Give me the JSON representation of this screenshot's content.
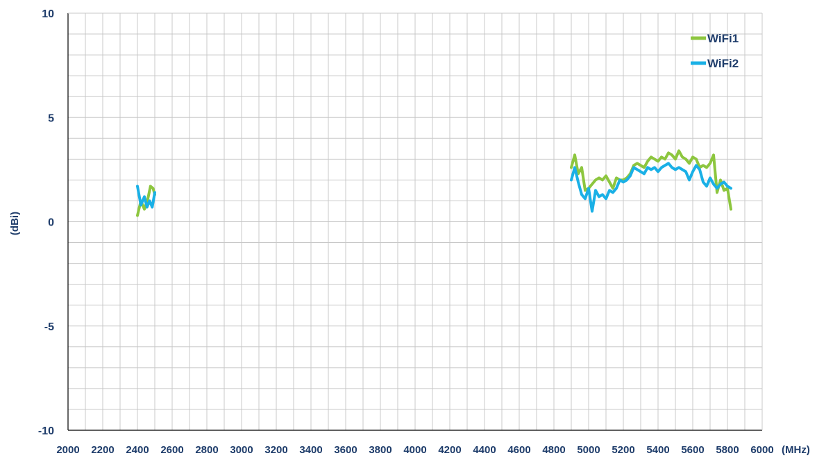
{
  "chart_data": {
    "type": "line",
    "xlabel": "(MHz)",
    "ylabel": "(dBi)",
    "xlim": [
      2000,
      6000
    ],
    "ylim": [
      -10,
      10
    ],
    "x_ticks": [
      2000,
      2200,
      2400,
      2600,
      2800,
      3000,
      3200,
      3400,
      3600,
      3800,
      4000,
      4200,
      4400,
      4600,
      4800,
      5000,
      5200,
      5400,
      5600,
      5800,
      6000
    ],
    "x_minor_step": 100,
    "y_ticks": [
      -10,
      -5,
      0,
      5,
      10
    ],
    "y_minor_step": 1,
    "grid": true,
    "legend_position": "top-right",
    "series": [
      {
        "name": "WiFi1",
        "color": "#8dc63f",
        "segments": [
          [
            [
              2400,
              0.3
            ],
            [
              2420,
              1.0
            ],
            [
              2440,
              0.6
            ],
            [
              2460,
              1.1
            ],
            [
              2475,
              1.7
            ],
            [
              2490,
              1.6
            ],
            [
              2500,
              1.3
            ]
          ],
          [
            [
              4900,
              2.6
            ],
            [
              4920,
              3.2
            ],
            [
              4940,
              2.3
            ],
            [
              4960,
              2.6
            ],
            [
              4980,
              1.5
            ],
            [
              5000,
              1.6
            ],
            [
              5020,
              1.8
            ],
            [
              5040,
              2.0
            ],
            [
              5060,
              2.1
            ],
            [
              5080,
              2.0
            ],
            [
              5100,
              2.2
            ],
            [
              5120,
              1.9
            ],
            [
              5140,
              1.6
            ],
            [
              5160,
              2.1
            ],
            [
              5180,
              2.0
            ],
            [
              5200,
              2.0
            ],
            [
              5220,
              2.1
            ],
            [
              5240,
              2.3
            ],
            [
              5260,
              2.7
            ],
            [
              5280,
              2.8
            ],
            [
              5300,
              2.7
            ],
            [
              5320,
              2.6
            ],
            [
              5340,
              2.9
            ],
            [
              5360,
              3.1
            ],
            [
              5380,
              3.0
            ],
            [
              5400,
              2.9
            ],
            [
              5420,
              3.1
            ],
            [
              5440,
              3.0
            ],
            [
              5460,
              3.3
            ],
            [
              5480,
              3.2
            ],
            [
              5500,
              3.0
            ],
            [
              5520,
              3.4
            ],
            [
              5540,
              3.1
            ],
            [
              5560,
              3.0
            ],
            [
              5580,
              2.8
            ],
            [
              5600,
              3.1
            ],
            [
              5620,
              3.0
            ],
            [
              5640,
              2.6
            ],
            [
              5660,
              2.7
            ],
            [
              5680,
              2.6
            ],
            [
              5700,
              2.8
            ],
            [
              5720,
              3.2
            ],
            [
              5740,
              1.4
            ],
            [
              5760,
              2.0
            ],
            [
              5780,
              1.5
            ],
            [
              5800,
              1.6
            ],
            [
              5820,
              0.6
            ]
          ]
        ]
      },
      {
        "name": "WiFi2",
        "color": "#1ab0e6",
        "segments": [
          [
            [
              2400,
              1.7
            ],
            [
              2420,
              0.8
            ],
            [
              2440,
              1.2
            ],
            [
              2455,
              0.7
            ],
            [
              2470,
              1.0
            ],
            [
              2485,
              0.7
            ],
            [
              2500,
              1.4
            ]
          ],
          [
            [
              4900,
              2.0
            ],
            [
              4920,
              2.6
            ],
            [
              4940,
              1.9
            ],
            [
              4960,
              1.3
            ],
            [
              4980,
              1.1
            ],
            [
              5000,
              1.6
            ],
            [
              5020,
              0.5
            ],
            [
              5040,
              1.5
            ],
            [
              5060,
              1.2
            ],
            [
              5080,
              1.3
            ],
            [
              5100,
              1.1
            ],
            [
              5120,
              1.5
            ],
            [
              5140,
              1.4
            ],
            [
              5160,
              1.6
            ],
            [
              5180,
              2.0
            ],
            [
              5200,
              1.9
            ],
            [
              5220,
              2.0
            ],
            [
              5240,
              2.2
            ],
            [
              5260,
              2.6
            ],
            [
              5280,
              2.5
            ],
            [
              5300,
              2.4
            ],
            [
              5320,
              2.3
            ],
            [
              5340,
              2.6
            ],
            [
              5360,
              2.5
            ],
            [
              5380,
              2.6
            ],
            [
              5400,
              2.4
            ],
            [
              5420,
              2.6
            ],
            [
              5440,
              2.7
            ],
            [
              5460,
              2.8
            ],
            [
              5480,
              2.6
            ],
            [
              5500,
              2.5
            ],
            [
              5520,
              2.6
            ],
            [
              5540,
              2.5
            ],
            [
              5560,
              2.4
            ],
            [
              5580,
              2.0
            ],
            [
              5600,
              2.4
            ],
            [
              5620,
              2.7
            ],
            [
              5640,
              2.5
            ],
            [
              5660,
              1.9
            ],
            [
              5680,
              1.7
            ],
            [
              5700,
              2.1
            ],
            [
              5720,
              1.8
            ],
            [
              5740,
              1.6
            ],
            [
              5760,
              1.8
            ],
            [
              5780,
              1.9
            ],
            [
              5800,
              1.7
            ],
            [
              5820,
              1.6
            ]
          ]
        ]
      }
    ]
  }
}
